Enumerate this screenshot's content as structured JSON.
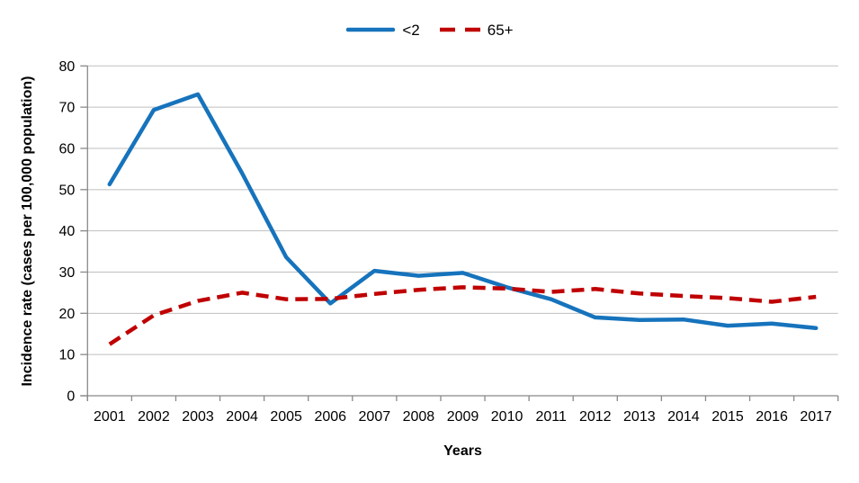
{
  "chart_data": {
    "type": "line",
    "x": [
      "2001",
      "2002",
      "2003",
      "2004",
      "2005",
      "2006",
      "2007",
      "2008",
      "2009",
      "2010",
      "2011",
      "2012",
      "2013",
      "2014",
      "2015",
      "2016",
      "2017"
    ],
    "series": [
      {
        "name": "<2",
        "color": "#1673BC",
        "style": "solid",
        "values": [
          51.3,
          69.3,
          73.1,
          54.0,
          33.6,
          22.4,
          30.3,
          29.1,
          29.8,
          26.3,
          23.4,
          19.0,
          18.4,
          18.5,
          17.0,
          17.5,
          16.4
        ]
      },
      {
        "name": "65+",
        "color": "#C00000",
        "style": "dashed",
        "values": [
          12.5,
          19.5,
          23.0,
          25.0,
          23.4,
          23.5,
          24.7,
          25.7,
          26.3,
          26.0,
          25.2,
          25.9,
          24.8,
          24.2,
          23.7,
          22.8,
          24.0
        ]
      }
    ],
    "title": "",
    "xlabel": "Years",
    "ylabel": "Incidence rate (cases per 100,000 population)",
    "ylim": [
      0,
      80
    ],
    "ytick_step": 10,
    "grid": "horizontal",
    "legend_position": "top-center",
    "colors": {
      "grid": "#BFBFBF",
      "axis": "#898989",
      "text": "#000000"
    }
  }
}
